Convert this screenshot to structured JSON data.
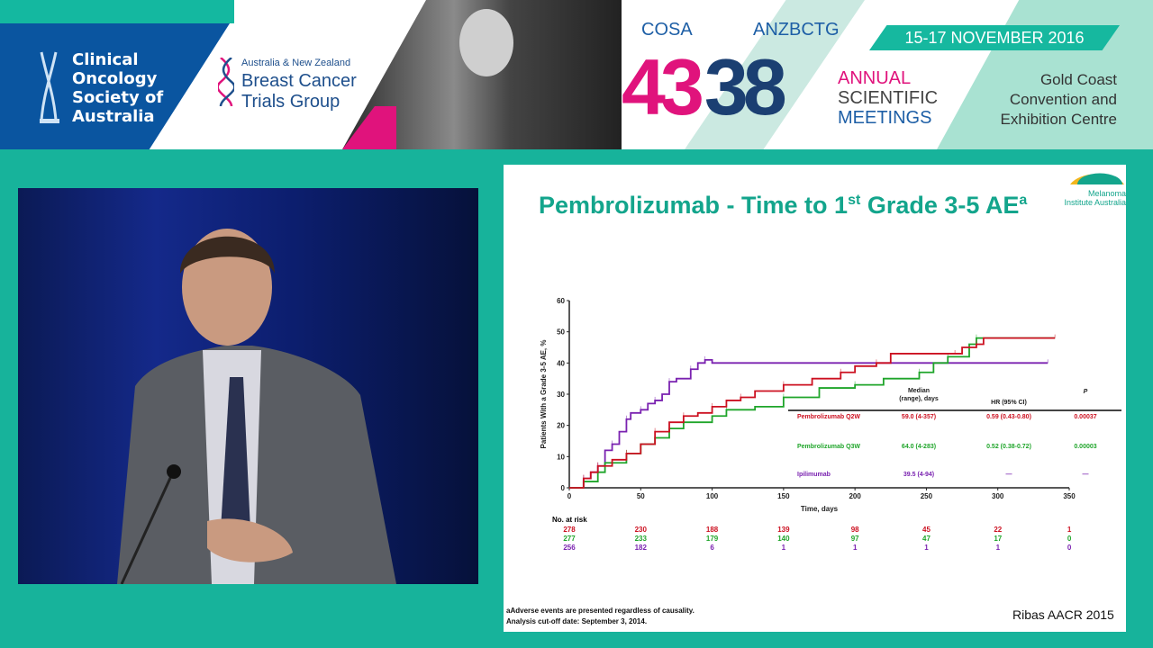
{
  "banner": {
    "cosa_org": [
      "Clinical",
      "Oncology",
      "Society of",
      "Australia"
    ],
    "anzbctg_small": "Australia & New Zealand",
    "anzbctg_big": [
      "Breast Cancer",
      "Trials Group"
    ],
    "cosa_label": "COSA",
    "anzbctg_label": "ANZBCTG",
    "num_43": "43",
    "num_38": "38",
    "meeting": [
      "ANNUAL",
      "SCIENTIFIC",
      "MEETINGS"
    ],
    "date": "15-17 NOVEMBER 2016",
    "venue": [
      "Gold Coast",
      "Convention and",
      "Exhibition Centre"
    ]
  },
  "slide": {
    "title": "Pembrolizumab - Time to 1",
    "title_sup": "st",
    "title_rest": " Grade 3-5 AE",
    "title_sup2": "a",
    "logo_text": [
      "Melanoma",
      "Institute Australia"
    ],
    "footnote": [
      "aAdverse events are presented regardless of causality.",
      "Analysis cut-off date: September 3, 2014."
    ],
    "citation": "Ribas AACR 2015",
    "table": {
      "headers": [
        "Median\n(range), days",
        "HR (95% CI)",
        "P"
      ],
      "rows": [
        {
          "name": "Pembrolizumab Q2W",
          "median": "59.0 (4-357)",
          "hr": "0.59 (0.43-0.80)",
          "p": "0.00037"
        },
        {
          "name": "Pembrolizumab Q3W",
          "median": "64.0 (4-283)",
          "hr": "0.52 (0.38-0.72)",
          "p": "0.00003"
        },
        {
          "name": "Ipilimumab",
          "median": "39.5 (4-94)",
          "hr": "—",
          "p": "—"
        }
      ]
    },
    "risk_label": "No. at risk",
    "at_risk": [
      [
        "278",
        "230",
        "188",
        "139",
        "98",
        "45",
        "22",
        "1"
      ],
      [
        "277",
        "233",
        "179",
        "140",
        "97",
        "47",
        "17",
        "0"
      ],
      [
        "256",
        "182",
        "6",
        "1",
        "1",
        "1",
        "1",
        "0"
      ]
    ]
  },
  "colors": {
    "q2w": "#cc1020",
    "q3w": "#1fa52a",
    "ipi": "#7a22b0",
    "teal": "#13a58c"
  },
  "chart_data": {
    "type": "line",
    "xlabel": "Time, days",
    "ylabel": "Patients With a Grade 3-5 AE, %",
    "xlim": [
      0,
      350
    ],
    "ylim": [
      0,
      60
    ],
    "xticks": [
      "0",
      "50",
      "100",
      "150",
      "200",
      "250",
      "300",
      "350"
    ],
    "yticks": [
      "0",
      "10",
      "20",
      "30",
      "40",
      "50",
      "60"
    ],
    "step": true,
    "series": [
      {
        "name": "Pembrolizumab Q2W",
        "color": "#cc1020",
        "x": [
          0,
          5,
          10,
          15,
          20,
          30,
          40,
          50,
          60,
          70,
          80,
          90,
          100,
          110,
          120,
          130,
          150,
          170,
          190,
          200,
          215,
          225,
          270,
          275,
          285,
          290,
          340
        ],
        "y": [
          0,
          0,
          3,
          5,
          7,
          9,
          11,
          14,
          18,
          21,
          23,
          24,
          26,
          28,
          29,
          31,
          33,
          35,
          37,
          39,
          40,
          43,
          43,
          45,
          46,
          48,
          48
        ]
      },
      {
        "name": "Pembrolizumab Q3W",
        "color": "#1fa52a",
        "x": [
          0,
          10,
          20,
          25,
          40,
          50,
          60,
          70,
          80,
          100,
          110,
          130,
          150,
          175,
          200,
          220,
          245,
          255,
          265,
          280,
          285,
          340
        ],
        "y": [
          0,
          2,
          5,
          8,
          11,
          14,
          16,
          19,
          21,
          23,
          25,
          26,
          29,
          32,
          33,
          35,
          37,
          40,
          42,
          46,
          48,
          48
        ]
      },
      {
        "name": "Ipilimumab",
        "color": "#7a22b0",
        "x": [
          0,
          5,
          10,
          15,
          20,
          25,
          30,
          35,
          40,
          43,
          50,
          55,
          60,
          65,
          70,
          75,
          85,
          90,
          95,
          100,
          335
        ],
        "y": [
          0,
          0,
          3,
          5,
          7,
          12,
          14,
          18,
          22,
          24,
          25,
          27,
          28,
          30,
          34,
          35,
          38,
          40,
          41,
          40,
          40
        ]
      }
    ]
  }
}
